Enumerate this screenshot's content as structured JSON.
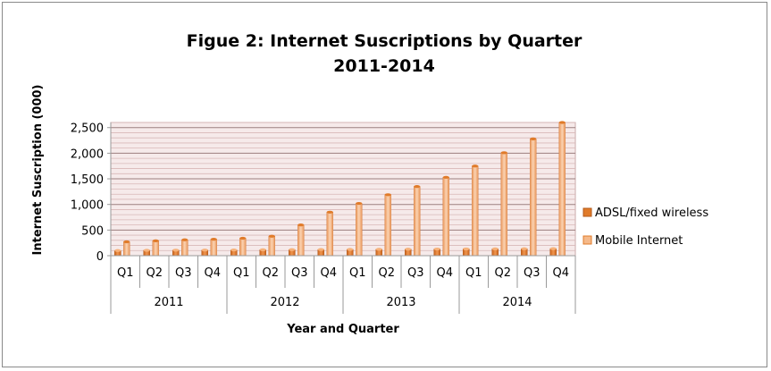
{
  "chart_data": {
    "type": "bar",
    "title": "Figue 2: Internet Suscriptions by Quarter",
    "subtitle": "2011-2014",
    "xlabel": "Year and Quarter",
    "ylabel": "Internet Suscription (000)",
    "ylim": [
      0,
      2600
    ],
    "yticks": [
      0,
      500,
      1000,
      1500,
      2000,
      2500
    ],
    "ytick_labels": [
      "0",
      "500",
      "1,000",
      "1,500",
      "2,000",
      "2,500"
    ],
    "grid": true,
    "legend_position": "right",
    "quarters": [
      "Q1",
      "Q2",
      "Q3",
      "Q4",
      "Q1",
      "Q2",
      "Q3",
      "Q4",
      "Q1",
      "Q2",
      "Q3",
      "Q4",
      "Q1",
      "Q2",
      "Q3",
      "Q4"
    ],
    "years": [
      "2011",
      "2012",
      "2013",
      "2014"
    ],
    "series": [
      {
        "name": "ADSL/fixed wireless",
        "color": "#e07b2a",
        "values": [
          100,
          105,
          108,
          110,
          112,
          115,
          118,
          120,
          122,
          125,
          127,
          130,
          132,
          134,
          136,
          138
        ]
      },
      {
        "name": "Mobile Internet",
        "color": "#f5b98a",
        "values": [
          270,
          290,
          310,
          320,
          340,
          380,
          600,
          850,
          1020,
          1190,
          1350,
          1530,
          1750,
          2010,
          2280,
          2600
        ]
      }
    ]
  }
}
